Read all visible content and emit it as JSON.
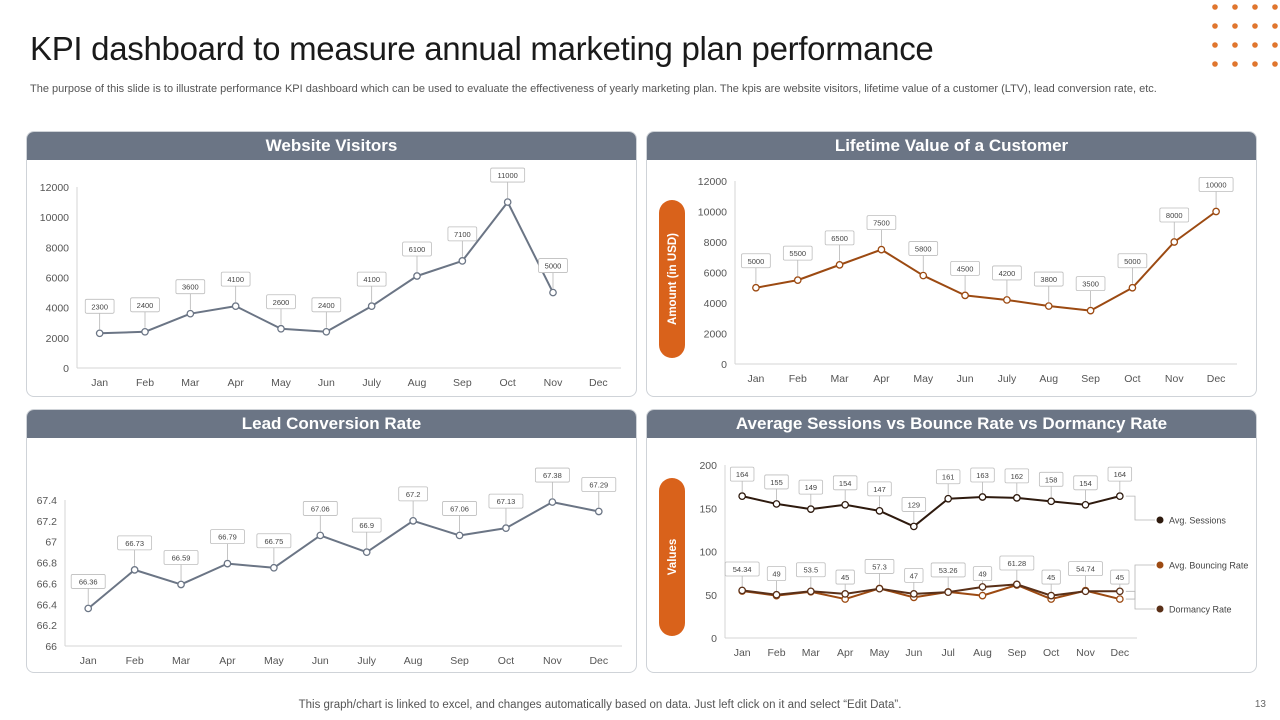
{
  "page": {
    "title": "KPI dashboard to measure annual marketing plan performance",
    "subtitle": "The purpose of this slide is to illustrate performance KPI dashboard which can be used to evaluate the effectiveness of yearly marketing plan. The kpis are website visitors, lifetime value of a customer (LTV), lead conversion rate, etc.",
    "footer": "This graph/chart is linked to excel,  and changes automatically based on data. Just left click on it and select “Edit Data”.",
    "page_number": "13"
  },
  "colors": {
    "header_bg": "#6b7585",
    "slate_line": "#6b7585",
    "brown_line": "#9c4a12",
    "dark_line": "#2e1a0e",
    "orange_accent": "#d9621b",
    "orange_dot": "#e0762e"
  },
  "chart_data": [
    {
      "id": "website-visitors",
      "type": "line",
      "title": "Website Visitors",
      "categories": [
        "Jan",
        "Feb",
        "Mar",
        "Apr",
        "May",
        "Jun",
        "July",
        "Aug",
        "Sep",
        "Oct",
        "Nov",
        "Dec"
      ],
      "values": [
        2300,
        2400,
        3600,
        4100,
        2600,
        2400,
        4100,
        6100,
        7100,
        11000,
        5000,
        null
      ],
      "labels": [
        "2300",
        "2400",
        "3600",
        "4100",
        "2600",
        "2400",
        "4100",
        "6100",
        "7100",
        "11000",
        "5000",
        ""
      ],
      "yticks": [
        "0",
        "2000",
        "4000",
        "6000",
        "8000",
        "10000",
        "12000"
      ],
      "ylim": [
        0,
        12000
      ],
      "ylabel": ""
    },
    {
      "id": "lifetime-value",
      "type": "line",
      "title": "Lifetime Value of a Customer",
      "categories": [
        "Jan",
        "Feb",
        "Mar",
        "Apr",
        "May",
        "Jun",
        "July",
        "Aug",
        "Sep",
        "Oct",
        "Nov",
        "Dec"
      ],
      "values": [
        5000,
        5500,
        6500,
        7500,
        5800,
        4500,
        4200,
        3800,
        3500,
        5000,
        8000,
        10000
      ],
      "labels": [
        "5000",
        "5500",
        "6500",
        "7500",
        "5800",
        "4500",
        "4200",
        "3800",
        "3500",
        "5000",
        "8000",
        "10000"
      ],
      "yticks": [
        "0",
        "2000",
        "4000",
        "6000",
        "8000",
        "10000",
        "12000"
      ],
      "ylim": [
        0,
        12000
      ],
      "ylabel": "Amount (in USD)"
    },
    {
      "id": "lead-conversion",
      "type": "line",
      "title": "Lead Conversion Rate",
      "categories": [
        "Jan",
        "Feb",
        "Mar",
        "Apr",
        "May",
        "Jun",
        "July",
        "Aug",
        "Sep",
        "Oct",
        "Nov",
        "Dec"
      ],
      "values": [
        66.36,
        66.73,
        66.59,
        66.79,
        66.75,
        67.06,
        66.9,
        67.2,
        67.06,
        67.13,
        67.38,
        67.29
      ],
      "labels": [
        "66.36",
        "66.73",
        "66.59",
        "66.79",
        "66.75",
        "67.06",
        "66.9",
        "67.2",
        "67.06",
        "67.13",
        "67.38",
        "67.29"
      ],
      "yticks": [
        "66",
        "66.2",
        "66.4",
        "66.6",
        "66.8",
        "67",
        "67.2",
        "67.4"
      ],
      "ylim": [
        66,
        67.4
      ],
      "ylabel": ""
    },
    {
      "id": "sessions-bounce-dormancy",
      "type": "line",
      "title": "Average Sessions vs Bounce Rate vs Dormancy Rate",
      "categories": [
        "Jan",
        "Feb",
        "Mar",
        "Apr",
        "May",
        "Jun",
        "Jul",
        "Aug",
        "Sep",
        "Oct",
        "Nov",
        "Dec"
      ],
      "yticks": [
        "0",
        "50",
        "100",
        "150",
        "200"
      ],
      "ylim": [
        0,
        200
      ],
      "ylabel": "Values",
      "series": [
        {
          "name": "Avg. Sessions",
          "values": [
            164,
            155,
            149,
            154,
            147,
            129,
            161,
            163,
            162,
            158,
            154,
            164
          ],
          "labels": [
            "164",
            "155",
            "149",
            "154",
            "147",
            "129",
            "161",
            "163",
            "162",
            "158",
            "154",
            "164"
          ]
        },
        {
          "name": "Avg. Bouncing Rate",
          "values": [
            54.34,
            49,
            53.5,
            45,
            57.3,
            47,
            53.26,
            49,
            61.28,
            45,
            54.74,
            45
          ],
          "labels": [
            "54.34",
            "49",
            "53.5",
            "45",
            "57.3",
            "47",
            "53.26",
            "49",
            "61.28",
            "45",
            "54.74",
            "45"
          ]
        },
        {
          "name": "Dormancy Rate",
          "values": [
            55,
            50,
            54,
            51,
            57,
            51,
            53,
            59,
            62,
            49,
            54,
            54
          ],
          "labels": [
            "",
            "",
            "",
            "",
            "",
            "",
            "",
            "",
            "",
            "",
            "",
            ""
          ]
        }
      ]
    }
  ]
}
